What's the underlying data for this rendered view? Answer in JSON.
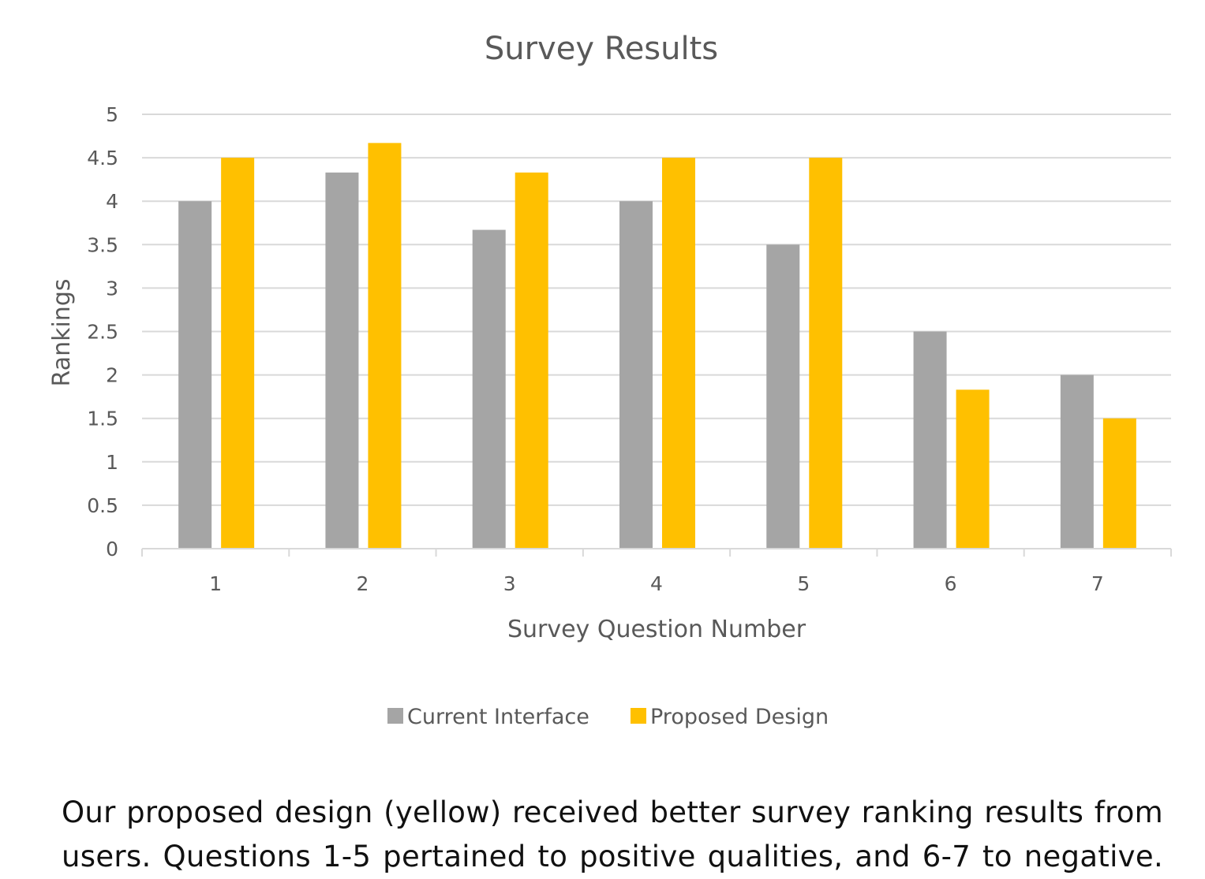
{
  "chart_data": {
    "type": "bar",
    "title": "Survey Results",
    "xlabel": "Survey Question Number",
    "ylabel": "Rankings",
    "categories": [
      "1",
      "2",
      "3",
      "4",
      "5",
      "6",
      "7"
    ],
    "series": [
      {
        "name": "Current Interface",
        "color": "#a5a5a5",
        "values": [
          4.0,
          4.33,
          3.67,
          4.0,
          3.5,
          2.5,
          2.0
        ]
      },
      {
        "name": "Proposed Design",
        "color": "#ffc000",
        "values": [
          4.5,
          4.67,
          4.33,
          4.5,
          4.5,
          1.83,
          1.5
        ]
      }
    ],
    "ylim": [
      0,
      5
    ],
    "yticks": [
      "0",
      "0.5",
      "1",
      "1.5",
      "2",
      "2.5",
      "3",
      "3.5",
      "4",
      "4.5",
      "5"
    ],
    "grid": true,
    "legend_position": "bottom"
  },
  "caption": {
    "line1": "Our proposed design (yellow) received better survey ranking results from",
    "line2": "users. Questions 1-5 pertained to positive qualities, and 6-7 to negative."
  }
}
